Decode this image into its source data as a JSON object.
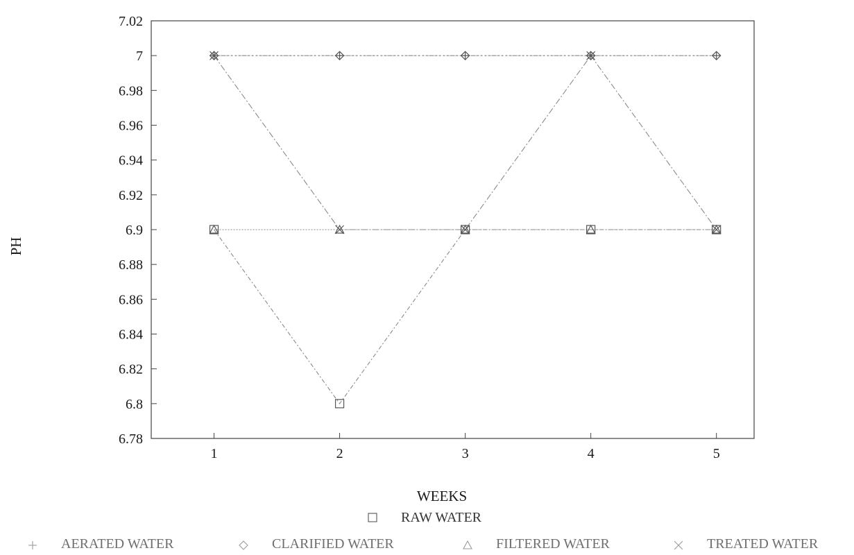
{
  "chart_data": {
    "type": "line",
    "title": "",
    "xlabel": "WEEKS",
    "ylabel": "PH",
    "x": [
      1,
      2,
      3,
      4,
      5
    ],
    "x_tick_labels": [
      "1",
      "2",
      "3",
      "4",
      "5"
    ],
    "xlim": [
      0.5,
      5.3
    ],
    "ylim": [
      6.78,
      7.02
    ],
    "y_ticks": [
      6.78,
      6.8,
      6.82,
      6.84,
      6.86,
      6.88,
      6.9,
      6.92,
      6.94,
      6.96,
      6.98,
      7.0,
      7.02
    ],
    "y_tick_labels": [
      "6.78",
      "6.8",
      "6.82",
      "6.84",
      "6.86",
      "6.88",
      "6.9",
      "6.92",
      "6.94",
      "6.96",
      "6.98",
      "7",
      "7.02"
    ],
    "grid": false,
    "legend_position": "bottom",
    "series": [
      {
        "name": "RAW WATER",
        "marker": "square",
        "values": [
          6.9,
          6.8,
          6.9,
          6.9,
          6.9
        ]
      },
      {
        "name": "AERATED WATER",
        "marker": "plus",
        "values": [
          7.0,
          7.0,
          7.0,
          7.0,
          7.0
        ]
      },
      {
        "name": "CLARIFIED WATER",
        "marker": "diamond",
        "values": [
          7.0,
          7.0,
          7.0,
          7.0,
          7.0
        ]
      },
      {
        "name": "FILTERED WATER",
        "marker": "triangle",
        "values": [
          6.9,
          6.9,
          6.9,
          6.9,
          6.9
        ]
      },
      {
        "name": "TREATED WATER",
        "marker": "cross",
        "values": [
          7.0,
          6.9,
          6.9,
          7.0,
          6.9
        ]
      }
    ],
    "colors": {
      "axis": "#444444",
      "series_line": "#8a8a8a",
      "marker": "#555555",
      "legend_marker": "#9a9a9a"
    }
  }
}
